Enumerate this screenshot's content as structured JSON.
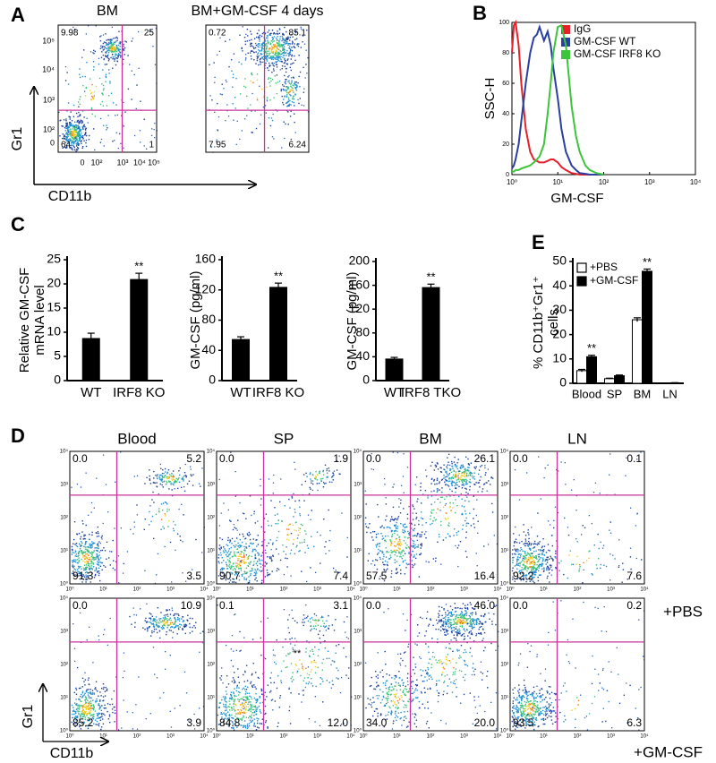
{
  "chart_data": [
    {
      "type": "flow",
      "panel": "A",
      "xlabel": "CD11b",
      "ylabel": "Gr1",
      "xticks": [
        "0",
        "10²",
        "10³",
        "10⁴",
        "10⁵"
      ],
      "yticks": [
        "10⁵",
        "10⁴",
        "10³",
        "10²",
        "0"
      ],
      "plots": [
        {
          "title": "BM",
          "quadrants": [
            "9.98",
            "25",
            "64",
            "1"
          ]
        },
        {
          "title": "BM+GM-CSF 4 days",
          "quadrants": [
            "0.72",
            "85.1",
            "7.95",
            "6.24"
          ]
        }
      ]
    },
    {
      "type": "line",
      "panel": "B",
      "ylabel": "SSC-H",
      "xlabel": "GM-CSF",
      "xlog": true,
      "xlim": [
        1,
        10000
      ],
      "xticks": [
        {
          "value": 1,
          "label": "10⁰"
        },
        {
          "value": 10,
          "label": "10¹"
        },
        {
          "value": 100,
          "label": "10²"
        },
        {
          "value": 1000,
          "label": "10³"
        },
        {
          "value": 10000,
          "label": "10⁴"
        }
      ],
      "ylim": [
        0,
        100
      ],
      "yticks": [
        0,
        20,
        40,
        60,
        80,
        100
      ],
      "legend": "top-right",
      "x": [
        1,
        1.1,
        1.2,
        1.4,
        1.6,
        2,
        2.5,
        3,
        3.5,
        4,
        5,
        6,
        7,
        8,
        10,
        12,
        15,
        20,
        25,
        30,
        40,
        50,
        70,
        100
      ],
      "series": [
        {
          "name": "IgG",
          "color": "#e8202a",
          "values": [
            80,
            98,
            100,
            85,
            60,
            30,
            15,
            10,
            9,
            8,
            8,
            9,
            10,
            10,
            8,
            5,
            3,
            1,
            0.5,
            0,
            0,
            0,
            0,
            0
          ]
        },
        {
          "name": "GM-CSF WT",
          "color": "#2a3fa0",
          "values": [
            4,
            6,
            10,
            20,
            35,
            60,
            80,
            90,
            92,
            97,
            88,
            94,
            85,
            70,
            50,
            30,
            15,
            6,
            3,
            1,
            0.5,
            0,
            0,
            0
          ]
        },
        {
          "name": "GM-CSF IRF8 KO",
          "color": "#3cc43a",
          "values": [
            2,
            2,
            3,
            3,
            4,
            5,
            6,
            8,
            10,
            12,
            20,
            40,
            60,
            80,
            97,
            98,
            85,
            45,
            25,
            15,
            6,
            3,
            1,
            0
          ]
        }
      ]
    },
    {
      "type": "bar",
      "panel": "C",
      "ylabel": [
        "Relative GM-CSF",
        "mRNA level"
      ],
      "categories": [
        "WT",
        "IRF8 KO"
      ],
      "values": [
        8.8,
        21
      ],
      "errors": [
        1,
        1.2
      ],
      "color": "#000000",
      "ylim": [
        0,
        25
      ],
      "yticks": [
        0,
        5,
        10,
        15,
        20,
        25
      ],
      "annotations": [
        null,
        "**"
      ]
    },
    {
      "type": "bar",
      "ylabel": "GM-CSF (pg/ml)",
      "categories": [
        "WT",
        "IRF8 KO"
      ],
      "values": [
        55,
        124
      ],
      "errors": [
        3,
        5
      ],
      "color": "#000000",
      "ylim": [
        0,
        160
      ],
      "yticks": [
        0,
        40,
        80,
        120,
        160
      ],
      "annotations": [
        null,
        "**"
      ]
    },
    {
      "type": "bar",
      "ylabel": "GM-CSF (pg/ml)",
      "categories": [
        "WT",
        "IRF8 TKO"
      ],
      "values": [
        37,
        157
      ],
      "errors": [
        2,
        5
      ],
      "color": "#000000",
      "ylim": [
        0,
        200
      ],
      "yticks": [
        0,
        40,
        80,
        120,
        160,
        200
      ],
      "annotations": [
        null,
        "**"
      ]
    },
    {
      "type": "grouped-bar",
      "panel": "E",
      "ylabel": [
        "% CD11b⁺Gr1⁺",
        "cells"
      ],
      "categories": [
        "Blood",
        "SP",
        "BM",
        "LN"
      ],
      "series": [
        {
          "name": "+PBS",
          "color": "#ffffff",
          "values": [
            5.2,
            1.9,
            26.1,
            0.1
          ],
          "errors": [
            0.5,
            0.2,
            0.8,
            0.05
          ]
        },
        {
          "name": "+GM-CSF",
          "color": "#000000",
          "values": [
            10.9,
            3.1,
            46.0,
            0.2
          ],
          "errors": [
            0.6,
            0.3,
            0.9,
            0.05
          ]
        }
      ],
      "ylim": [
        0,
        50
      ],
      "yticks": [
        0,
        10,
        20,
        30,
        40,
        50
      ],
      "legend": "top-left",
      "annotations": [
        "**",
        null,
        "**",
        null
      ]
    },
    {
      "type": "flow-grid",
      "panel": "D",
      "xlabel": "CD11b",
      "ylabel": "Gr1",
      "ticks": [
        "10⁰",
        "10¹",
        "10²",
        "10³",
        "10⁴"
      ],
      "columns": [
        "Blood",
        "SP",
        "BM",
        "LN"
      ],
      "rows": [
        "+PBS",
        "+GM-CSF"
      ],
      "quadrants": [
        [
          [
            "0.0",
            "5.2",
            "91.3",
            "3.5"
          ],
          [
            "0.0",
            "1.9",
            "90.7",
            "7.4"
          ],
          [
            "0.0",
            "26.1",
            "57.5",
            "16.4"
          ],
          [
            "0.0",
            "0.1",
            "92.2",
            "7.6"
          ]
        ],
        [
          [
            "0.0",
            "10.9",
            "85.2",
            "3.9"
          ],
          [
            "0.1",
            "3.1",
            "84.8",
            "12.0"
          ],
          [
            "0.0",
            "46.0",
            "34.0",
            "20.0"
          ],
          [
            "0.0",
            "0.2",
            "93.5",
            "6.3"
          ]
        ]
      ],
      "annotation": "**"
    }
  ]
}
